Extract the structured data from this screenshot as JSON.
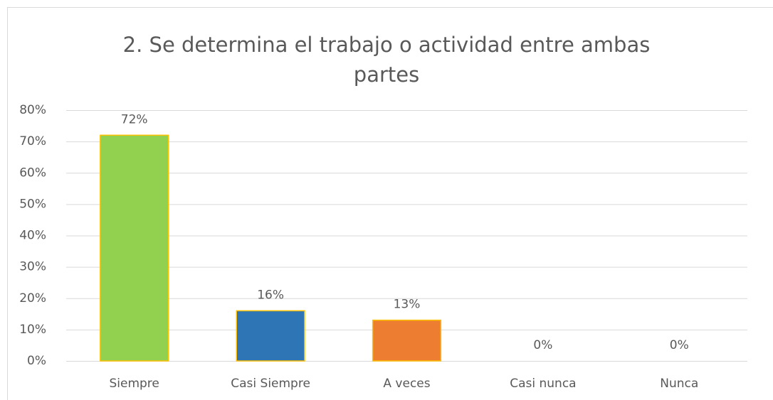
{
  "chart_data": {
    "type": "bar",
    "title": "2. Se determina el trabajo o actividad entre ambas partes",
    "categories": [
      "Siempre",
      "Casi Siempre",
      "A veces",
      "Casi nunca",
      "Nunca"
    ],
    "values": [
      72,
      16,
      13,
      0,
      0
    ],
    "value_labels": [
      "72%",
      "16%",
      "13%",
      "0%",
      "0%"
    ],
    "colors": [
      "#92d050",
      "#2e75b6",
      "#ed7d31",
      "#a5a5a5",
      "#ffc000"
    ],
    "edge_color": "#ffc000",
    "ylim": [
      0,
      80
    ],
    "yticks": [
      {
        "value": 0,
        "label": "0%"
      },
      {
        "value": 10,
        "label": "10%"
      },
      {
        "value": 20,
        "label": "20%"
      },
      {
        "value": 30,
        "label": "30%"
      },
      {
        "value": 40,
        "label": "40%"
      },
      {
        "value": 50,
        "label": "50%"
      },
      {
        "value": 60,
        "label": "60%"
      },
      {
        "value": 70,
        "label": "70%"
      },
      {
        "value": 80,
        "label": "80%"
      }
    ],
    "grid": true
  }
}
